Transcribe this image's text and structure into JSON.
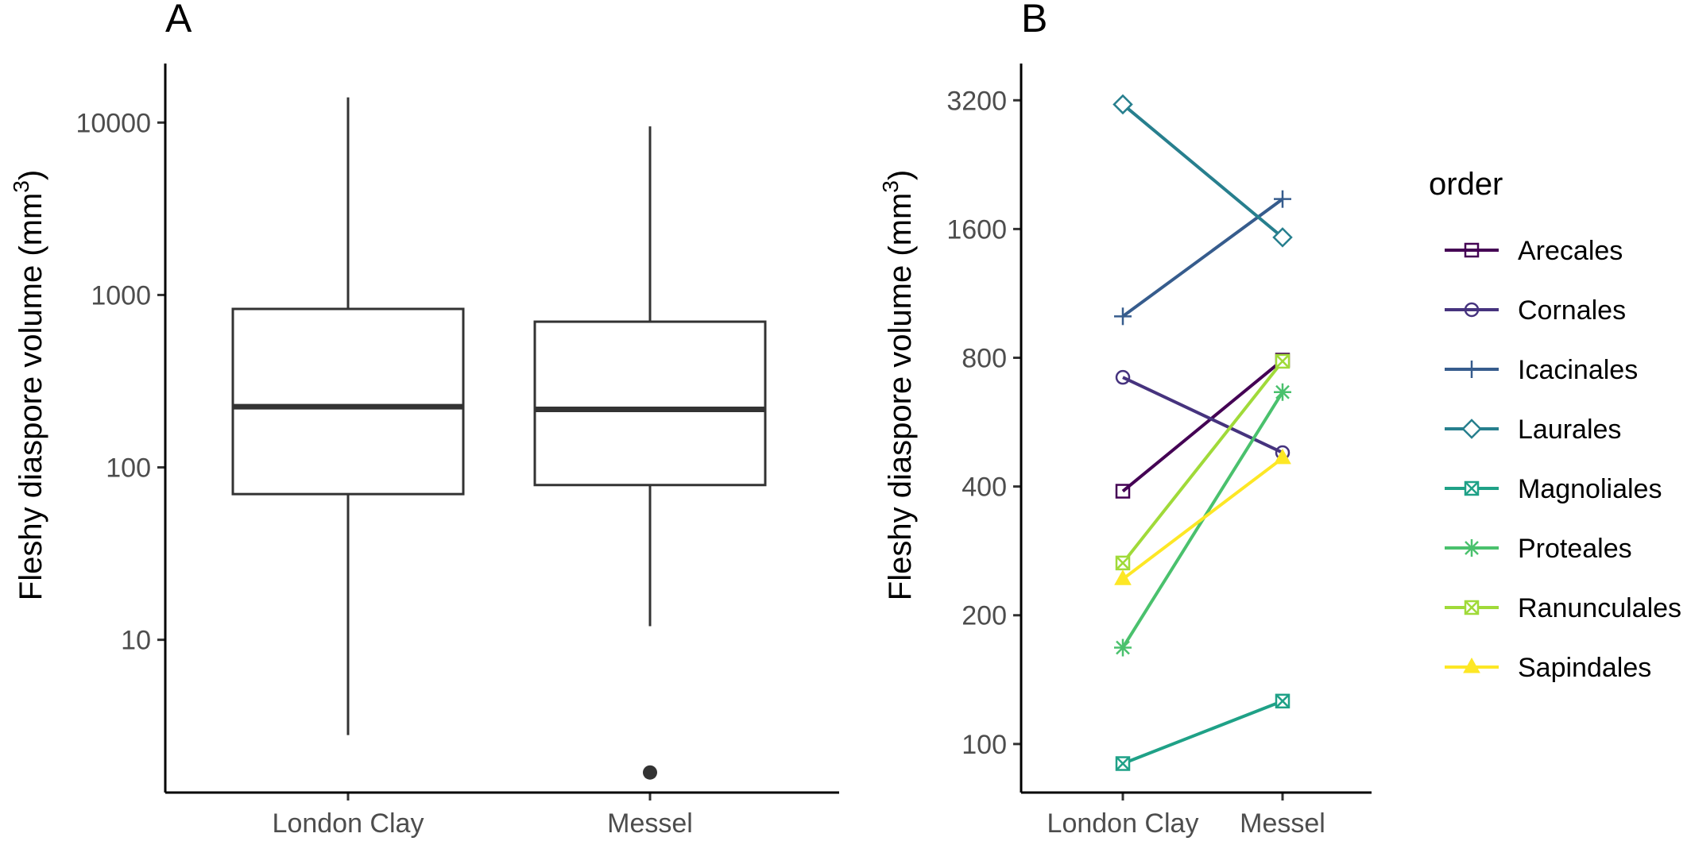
{
  "chart_data": [
    {
      "panel": "A",
      "type": "box",
      "ylabel": "Fleshy diaspore volume (mm",
      "ylabel_sup": "3",
      "ylabel_close": ")",
      "yscale": "log10",
      "ylim": [
        1.3,
        22000
      ],
      "yticks": [
        10,
        100,
        1000,
        10000
      ],
      "ytick_labels": [
        "10",
        "100",
        "1000",
        "10000"
      ],
      "categories": [
        "London Clay",
        "Messel"
      ],
      "boxes": [
        {
          "category": "London Clay",
          "whisker_low": 2.8,
          "q1": 70,
          "median": 225,
          "q3": 830,
          "whisker_high": 14000,
          "outliers": []
        },
        {
          "category": "Messel",
          "whisker_low": 12,
          "q1": 79,
          "median": 217,
          "q3": 700,
          "whisker_high": 9500,
          "outliers": [
            1.7
          ]
        }
      ],
      "grid": false
    },
    {
      "panel": "B",
      "type": "line",
      "ylabel": "Fleshy diaspore volume (mm",
      "ylabel_sup": "3",
      "ylabel_close": ")",
      "yscale": "log2",
      "ylim": [
        77,
        3900
      ],
      "yticks": [
        100,
        200,
        400,
        800,
        1600,
        3200
      ],
      "ytick_labels": [
        "100",
        "200",
        "400",
        "800",
        "1600",
        "3200"
      ],
      "categories": [
        "London Clay",
        "Messel"
      ],
      "legend_title": "order",
      "legend_position": "right",
      "series": [
        {
          "name": "Arecales",
          "values": [
            390,
            790
          ],
          "color": "#440154",
          "marker": "square"
        },
        {
          "name": "Cornales",
          "values": [
            720,
            480
          ],
          "color": "#46337e",
          "marker": "circle"
        },
        {
          "name": "Icacinales",
          "values": [
            1000,
            1880
          ],
          "color": "#365c8d",
          "marker": "plus"
        },
        {
          "name": "Laurales",
          "values": [
            3130,
            1530
          ],
          "color": "#277f8e",
          "marker": "diamond"
        },
        {
          "name": "Magnoliales",
          "values": [
            90,
            126
          ],
          "color": "#1fa187",
          "marker": "square-cross"
        },
        {
          "name": "Proteales",
          "values": [
            168,
            665
          ],
          "color": "#4ac16d",
          "marker": "asterisk"
        },
        {
          "name": "Ranunculales",
          "values": [
            265,
            785
          ],
          "color": "#a0da39",
          "marker": "square-x"
        },
        {
          "name": "Sapindales",
          "values": [
            243,
            466
          ],
          "color": "#fde725",
          "marker": "triangle"
        }
      ],
      "grid": false
    }
  ]
}
